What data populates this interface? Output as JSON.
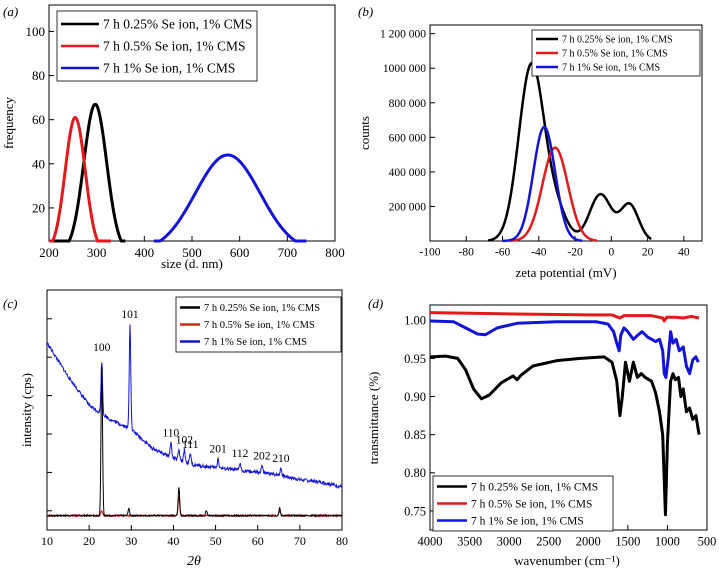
{
  "chart_data": [
    {
      "panel": "(a)",
      "type": "line",
      "title": "",
      "xlabel": "size (d. nm)",
      "ylabel": "frequency",
      "xlim": [
        200,
        800
      ],
      "ylim": [
        5,
        112
      ],
      "xticks": [
        200,
        300,
        400,
        500,
        600,
        700,
        800
      ],
      "yticks": [
        20,
        40,
        60,
        80,
        100
      ],
      "legend_position": "top-left",
      "series": [
        {
          "name": "7 h 0.25% Se ion, 1% CMS",
          "color": "#000000",
          "mu": 297,
          "sigma": 24,
          "peak": 67,
          "xrange": [
            210,
            360
          ]
        },
        {
          "name": "7 h 0.5% Se ion, 1% CMS",
          "color": "#e31a1c",
          "mu": 255,
          "sigma": 21,
          "peak": 61,
          "xrange": [
            200,
            330
          ]
        },
        {
          "name": "7 h 1% Se ion, 1% CMS",
          "color": "#1414d8",
          "mu": 575,
          "sigma": 68,
          "peak": 44,
          "xrange": [
            420,
            740
          ]
        }
      ]
    },
    {
      "panel": "(b)",
      "type": "line",
      "title": "",
      "xlabel": "zeta potential (mV)",
      "ylabel": "counts",
      "xlim": [
        -100,
        50
      ],
      "ylim": [
        0,
        1250000
      ],
      "xticks": [
        -100,
        -80,
        -60,
        -40,
        -20,
        0,
        20,
        40
      ],
      "ytick_labels": [
        "200 000",
        "400 000",
        "600 000",
        "800 000",
        "1000 000",
        "1 200 000"
      ],
      "yticks": [
        200000,
        400000,
        600000,
        800000,
        1000000,
        1200000
      ],
      "legend_position": "top-right",
      "series": [
        {
          "name": "7 h 0.25% Se ion, 1% CMS",
          "color": "#000000",
          "components": [
            [
              -44,
              7,
              1020000
            ],
            [
              -30,
              6,
              150000
            ],
            [
              -6,
              6,
              270000
            ],
            [
              10,
              5,
              210000
            ]
          ],
          "xrange": [
            -68,
            22
          ]
        },
        {
          "name": "7 h 0.5% Se ion, 1% CMS",
          "color": "#e31a1c",
          "components": [
            [
              -31,
              7,
              540000
            ]
          ],
          "xrange": [
            -56,
            -8
          ]
        },
        {
          "name": "7 h 1% Se ion, 1% CMS",
          "color": "#1414d8",
          "components": [
            [
              -37,
              6,
              660000
            ]
          ],
          "xrange": [
            -60,
            -16
          ]
        }
      ]
    },
    {
      "panel": "(c)",
      "type": "line",
      "title": "",
      "xlabel": "2θ",
      "ylabel": "intensity (cps)",
      "xlim": [
        10,
        80
      ],
      "ylim": [
        0,
        100
      ],
      "xticks": [
        10,
        20,
        30,
        40,
        50,
        60,
        70,
        80
      ],
      "legend_position": "top-right",
      "peak_labels": [
        {
          "label": "100",
          "x": 23.0
        },
        {
          "label": "101",
          "x": 29.7
        },
        {
          "label": "110",
          "x": 39.4
        },
        {
          "label": "102",
          "x": 42.6
        },
        {
          "label": "111",
          "x": 44.0
        },
        {
          "label": "201",
          "x": 50.6
        },
        {
          "label": "112",
          "x": 55.8
        },
        {
          "label": "202",
          "x": 61.0
        },
        {
          "label": "210",
          "x": 65.5
        }
      ],
      "series": [
        {
          "name": "7 h 0.25% Se ion, 1% CMS",
          "color": "#000000",
          "baseline": 6,
          "peaks": [
            [
              23.0,
              62
            ],
            [
              29.4,
              3
            ],
            [
              41.3,
              12
            ],
            [
              47.8,
              2
            ],
            [
              65.2,
              3
            ]
          ]
        },
        {
          "name": "7 h 0.5% Se ion, 1% CMS",
          "color": "#e31a1c",
          "baseline": 6,
          "peaks": [
            [
              23.0,
              2
            ],
            [
              41.3,
              8
            ],
            [
              65.2,
              2
            ]
          ]
        },
        {
          "name": "7 h 1% Se ion, 1% CMS",
          "color": "#1414d8",
          "baseline": 12,
          "background": [
            [
              10,
              78
            ],
            [
              15,
              64
            ],
            [
              20,
              52
            ],
            [
              25,
              46
            ],
            [
              30,
              42
            ],
            [
              35,
              34
            ],
            [
              40,
              30
            ],
            [
              45,
              27
            ],
            [
              50,
              26
            ],
            [
              55,
              25
            ],
            [
              60,
              24
            ],
            [
              65,
              23
            ],
            [
              70,
              21
            ],
            [
              75,
              20
            ],
            [
              80,
              18
            ]
          ],
          "peaks": [
            [
              23.0,
              22
            ],
            [
              29.7,
              44
            ],
            [
              39.4,
              6
            ],
            [
              41.3,
              4
            ],
            [
              42.6,
              5
            ],
            [
              44.0,
              4
            ],
            [
              50.6,
              4
            ],
            [
              55.8,
              3
            ],
            [
              61.0,
              3
            ],
            [
              65.5,
              3
            ]
          ]
        }
      ]
    },
    {
      "panel": "(d)",
      "type": "line",
      "title": "",
      "xlabel": "wavenumber (cm⁻¹)",
      "ylabel": "transmittance (%)",
      "xlim": [
        4000,
        500
      ],
      "ylim": [
        0.725,
        1.02
      ],
      "xticks": [
        4000,
        3500,
        3000,
        2500,
        2000,
        1500,
        1000,
        500
      ],
      "ytick_labels": [
        "0.75",
        "0.80",
        "0.85",
        "0.90",
        "0.95",
        "1.00"
      ],
      "yticks": [
        0.75,
        0.8,
        0.85,
        0.9,
        0.95,
        1.0
      ],
      "legend_position": "bottom-left",
      "series": [
        {
          "name": "7 h 0.25% Se ion, 1% CMS",
          "color": "#000000",
          "points": [
            [
              4000,
              0.952
            ],
            [
              3800,
              0.953
            ],
            [
              3650,
              0.95
            ],
            [
              3550,
              0.935
            ],
            [
              3450,
              0.91
            ],
            [
              3350,
              0.897
            ],
            [
              3250,
              0.902
            ],
            [
              3100,
              0.918
            ],
            [
              2950,
              0.927
            ],
            [
              2900,
              0.922
            ],
            [
              2850,
              0.928
            ],
            [
              2700,
              0.94
            ],
            [
              2400,
              0.947
            ],
            [
              2100,
              0.95
            ],
            [
              1800,
              0.952
            ],
            [
              1700,
              0.945
            ],
            [
              1640,
              0.92
            ],
            [
              1600,
              0.875
            ],
            [
              1570,
              0.9
            ],
            [
              1530,
              0.945
            ],
            [
              1480,
              0.92
            ],
            [
              1430,
              0.945
            ],
            [
              1380,
              0.925
            ],
            [
              1330,
              0.93
            ],
            [
              1280,
              0.925
            ],
            [
              1200,
              0.92
            ],
            [
              1150,
              0.905
            ],
            [
              1100,
              0.88
            ],
            [
              1060,
              0.85
            ],
            [
              1040,
              0.79
            ],
            [
              1025,
              0.745
            ],
            [
              1000,
              0.84
            ],
            [
              960,
              0.92
            ],
            [
              930,
              0.93
            ],
            [
              900,
              0.922
            ],
            [
              860,
              0.925
            ],
            [
              830,
              0.9
            ],
            [
              800,
              0.91
            ],
            [
              760,
              0.88
            ],
            [
              720,
              0.885
            ],
            [
              680,
              0.87
            ],
            [
              640,
              0.875
            ],
            [
              600,
              0.85
            ]
          ]
        },
        {
          "name": "7 h 0.5% Se ion, 1% CMS",
          "color": "#e31a1c",
          "points": [
            [
              4000,
              1.01
            ],
            [
              3400,
              1.009
            ],
            [
              2800,
              1.008
            ],
            [
              2000,
              1.007
            ],
            [
              1700,
              1.007
            ],
            [
              1600,
              1.003
            ],
            [
              1550,
              1.006
            ],
            [
              1200,
              1.006
            ],
            [
              1060,
              1.003
            ],
            [
              1040,
              0.999
            ],
            [
              1010,
              1.004
            ],
            [
              900,
              1.004
            ],
            [
              800,
              1.003
            ],
            [
              700,
              1.005
            ],
            [
              600,
              1.003
            ]
          ]
        },
        {
          "name": "7 h 1% Se ion, 1% CMS",
          "color": "#1414d8",
          "points": [
            [
              4000,
              0.999
            ],
            [
              3700,
              0.998
            ],
            [
              3550,
              0.99
            ],
            [
              3400,
              0.982
            ],
            [
              3300,
              0.981
            ],
            [
              3150,
              0.99
            ],
            [
              2900,
              0.996
            ],
            [
              2400,
              0.998
            ],
            [
              1900,
              0.998
            ],
            [
              1750,
              0.995
            ],
            [
              1680,
              0.985
            ],
            [
              1640,
              0.97
            ],
            [
              1610,
              0.96
            ],
            [
              1590,
              0.98
            ],
            [
              1550,
              0.99
            ],
            [
              1500,
              0.985
            ],
            [
              1430,
              0.975
            ],
            [
              1380,
              0.98
            ],
            [
              1320,
              0.985
            ],
            [
              1250,
              0.978
            ],
            [
              1150,
              0.972
            ],
            [
              1100,
              0.975
            ],
            [
              1060,
              0.96
            ],
            [
              1040,
              0.93
            ],
            [
              1020,
              0.925
            ],
            [
              990,
              0.95
            ],
            [
              960,
              0.985
            ],
            [
              930,
              0.97
            ],
            [
              890,
              0.975
            ],
            [
              850,
              0.96
            ],
            [
              800,
              0.965
            ],
            [
              760,
              0.94
            ],
            [
              720,
              0.93
            ],
            [
              680,
              0.948
            ],
            [
              640,
              0.952
            ],
            [
              610,
              0.945
            ]
          ]
        }
      ]
    }
  ]
}
